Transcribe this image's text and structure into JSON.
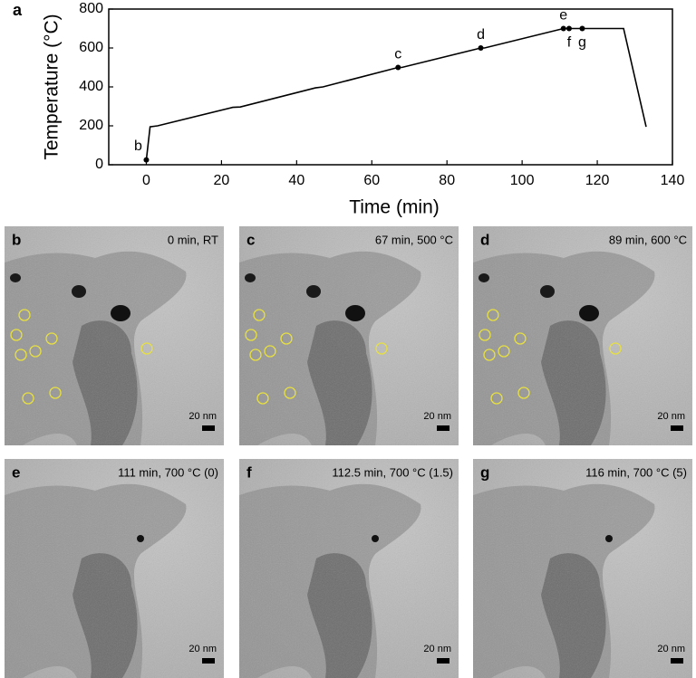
{
  "chart_data": {
    "type": "line",
    "panel_label": "a",
    "xlabel": "Time (min)",
    "ylabel": "Temperature (°C)",
    "xlim": [
      -10,
      140
    ],
    "xticks": [
      0,
      20,
      40,
      60,
      80,
      100,
      120,
      140
    ],
    "ylim": [
      0,
      800
    ],
    "yticks": [
      0,
      200,
      400,
      600,
      800
    ],
    "color": "#000000",
    "x": [
      0,
      1,
      3,
      23,
      25,
      45,
      47,
      67,
      68,
      89,
      90,
      111,
      112.5,
      116,
      127,
      133
    ],
    "values": [
      25,
      195,
      200,
      295,
      297,
      395,
      400,
      500,
      500,
      600,
      600,
      700,
      700,
      700,
      700,
      195
    ],
    "points": [
      {
        "x": 0,
        "y": 25,
        "label": "b"
      },
      {
        "x": 67,
        "y": 500,
        "label": "c"
      },
      {
        "x": 89,
        "y": 600,
        "label": "d"
      },
      {
        "x": 111,
        "y": 700,
        "label": "e"
      },
      {
        "x": 112.5,
        "y": 700,
        "label": "f"
      },
      {
        "x": 116,
        "y": 700,
        "label": "g"
      }
    ]
  },
  "panels": [
    {
      "label": "b",
      "caption": "0 min, RT",
      "scale": "20 nm"
    },
    {
      "label": "c",
      "caption": "67 min, 500 °C",
      "scale": "20 nm"
    },
    {
      "label": "d",
      "caption": "89 min, 600 °C",
      "scale": "20 nm"
    },
    {
      "label": "e",
      "caption": "111 min, 700 °C (0)",
      "scale": "20 nm"
    },
    {
      "label": "f",
      "caption": "112.5 min, 700 °C (1.5)",
      "scale": "20 nm"
    },
    {
      "label": "g",
      "caption": "116 min, 700 °C (5)",
      "scale": "20 nm"
    }
  ]
}
